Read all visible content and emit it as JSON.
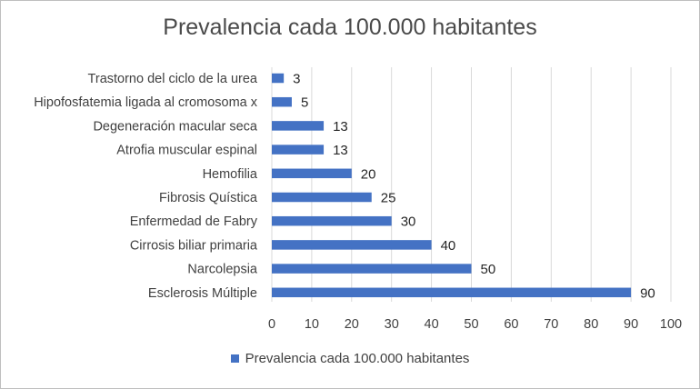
{
  "chart_data": {
    "type": "bar",
    "orientation": "horizontal",
    "title": "Prevalencia cada 100.000 habitantes",
    "categories": [
      "Trastorno del ciclo de la urea",
      "Hipofosfatemia ligada al cromosoma x",
      "Degeneración macular seca",
      "Atrofia muscular espinal",
      "Hemofilia",
      "Fibrosis Quística",
      "Enfermedad de Fabry",
      "Cirrosis biliar primaria",
      "Narcolepsia",
      "Esclerosis Múltiple"
    ],
    "series": [
      {
        "name": "Prevalencia cada 100.000 habitantes",
        "values": [
          3,
          5,
          13,
          13,
          20,
          25,
          30,
          40,
          50,
          90
        ],
        "color": "#4472c4"
      }
    ],
    "xlim": [
      0,
      100
    ],
    "xticks": [
      0,
      10,
      20,
      30,
      40,
      50,
      60,
      70,
      80,
      90,
      100
    ],
    "grid": true,
    "legend_position": "bottom",
    "xlabel": "",
    "ylabel": ""
  }
}
